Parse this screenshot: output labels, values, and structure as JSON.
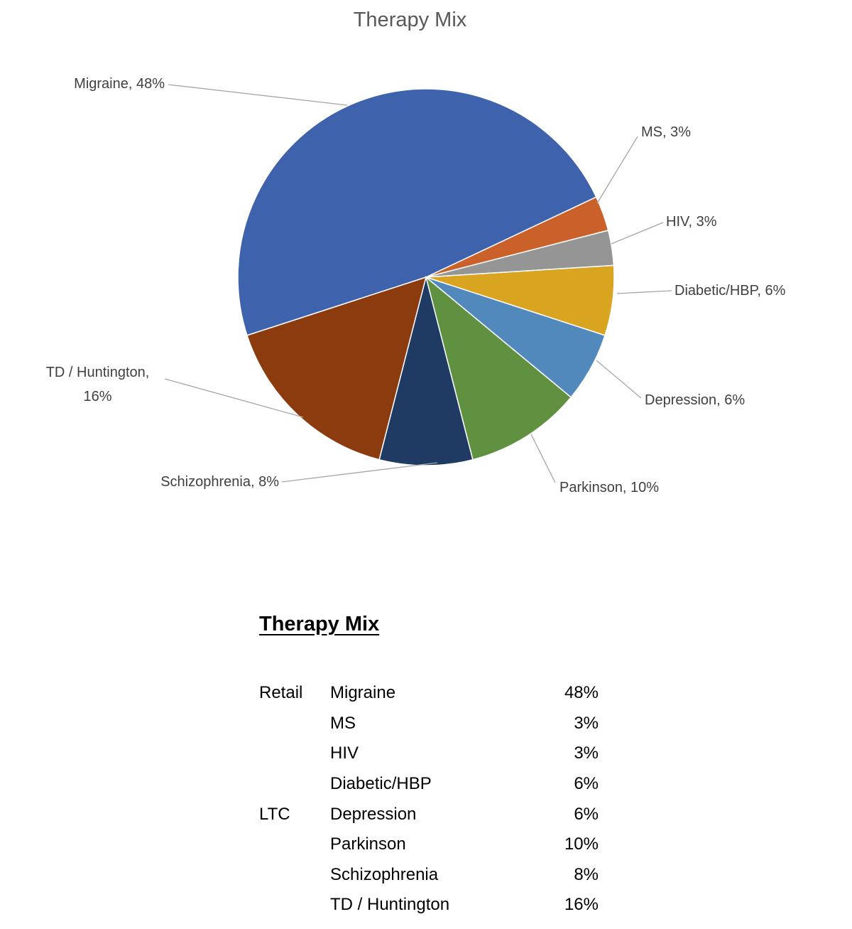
{
  "chart_data": {
    "type": "pie",
    "title": "Therapy Mix",
    "start_angle_deg": 252,
    "direction": "clockwise",
    "unit": "%",
    "legend_position": "none",
    "labels": [
      "Migraine",
      "MS",
      "HIV",
      "Diabetic/HBP",
      "Depression",
      "Parkinson",
      "Schizophrenia",
      "TD / Huntington"
    ],
    "values": [
      48,
      3,
      3,
      6,
      6,
      10,
      8,
      16
    ],
    "colors": [
      "#3F62AC",
      "#CB612A",
      "#959595",
      "#D9A420",
      "#5289BD",
      "#609140",
      "#1F3A63",
      "#8B3B0E"
    ],
    "data_labels": [
      "Migraine, 48%",
      "MS, 3%",
      "HIV, 3%",
      "Diabetic/HBP, 6%",
      "Depression, 6%",
      "Parkinson, 10%",
      "Schizophrenia, 8%",
      "TD / Huntington, 16%"
    ],
    "leader_line_color": "#A6A6A6"
  },
  "table": {
    "title": "Therapy Mix",
    "rows": [
      {
        "group": "Retail",
        "therapy": "Migraine",
        "share": "48%"
      },
      {
        "group": "",
        "therapy": "MS",
        "share": "3%"
      },
      {
        "group": "",
        "therapy": "HIV",
        "share": "3%"
      },
      {
        "group": "",
        "therapy": "Diabetic/HBP",
        "share": "6%"
      },
      {
        "group": "LTC",
        "therapy": "Depression",
        "share": "6%"
      },
      {
        "group": "",
        "therapy": "Parkinson",
        "share": "10%"
      },
      {
        "group": "",
        "therapy": "Schizophrenia",
        "share": "8%"
      },
      {
        "group": "",
        "therapy": "TD / Huntington",
        "share": "16%"
      }
    ]
  }
}
